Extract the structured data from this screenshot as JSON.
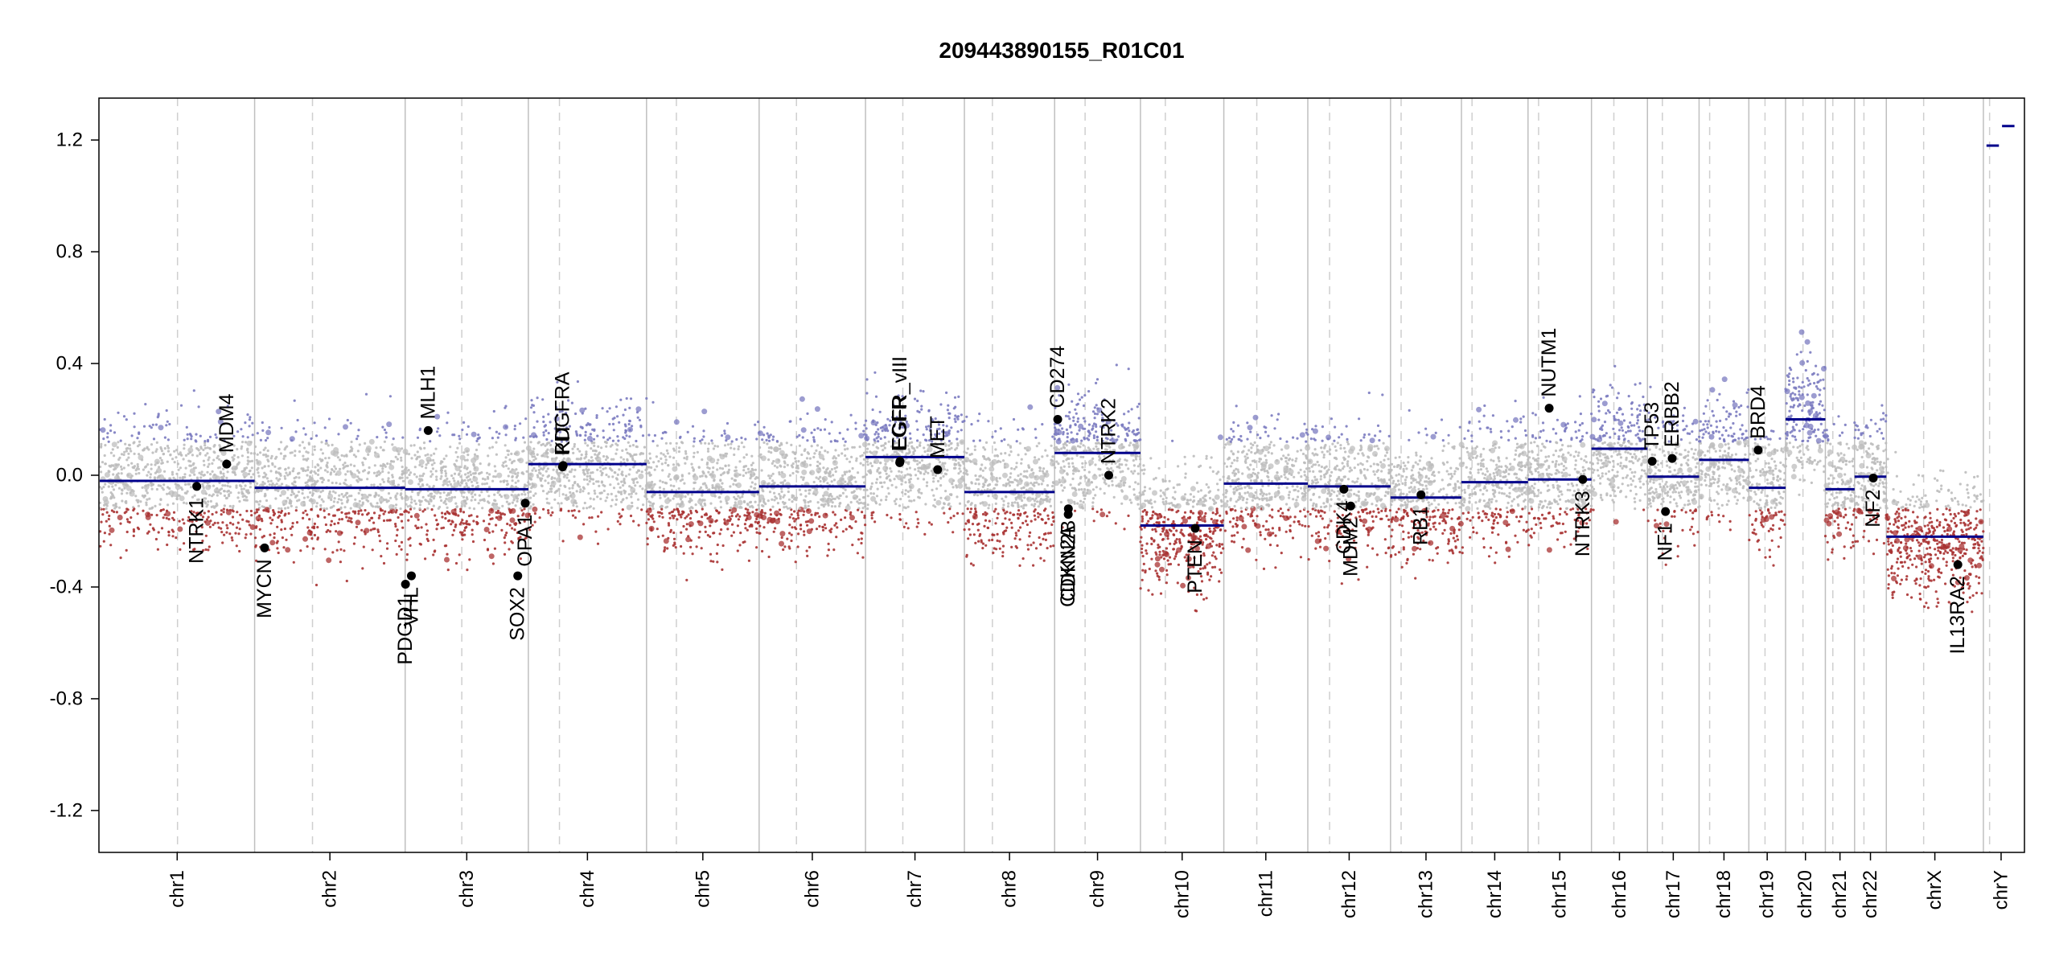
{
  "chart_data": {
    "type": "scatter",
    "title": "209443890155_R01C01",
    "xlabel": "",
    "ylabel": "",
    "ylim": [
      -1.35,
      1.35
    ],
    "y_ticks": [
      -1.2,
      -0.8,
      -0.4,
      0.0,
      0.4,
      0.8,
      1.2
    ],
    "y_tick_labels": [
      "-1.2",
      "-0.8",
      "-0.4",
      "0.0",
      "0.4",
      "0.8",
      "1.2"
    ],
    "grid": false,
    "colors": {
      "gain_points": "#7b7bc0",
      "neutral_points": "#bdbdbd",
      "loss_points": "#a83232",
      "segments": "#00008b",
      "chromosome_divider": "#bfbfbf",
      "centromere_line": "#cfcfcf",
      "gene_marker": "#000000"
    },
    "chromosomes": [
      {
        "name": "chr1",
        "length": 249,
        "centromere": 125,
        "segments": [
          {
            "start": 0,
            "end": 249,
            "value": -0.02
          }
        ]
      },
      {
        "name": "chr2",
        "length": 242,
        "centromere": 93,
        "segments": [
          {
            "start": 0,
            "end": 242,
            "value": -0.045
          }
        ]
      },
      {
        "name": "chr3",
        "length": 198,
        "centromere": 91,
        "segments": [
          {
            "start": 0,
            "end": 198,
            "value": -0.05
          }
        ]
      },
      {
        "name": "chr4",
        "length": 190,
        "centromere": 50,
        "segments": [
          {
            "start": 0,
            "end": 190,
            "value": 0.04
          }
        ]
      },
      {
        "name": "chr5",
        "length": 181,
        "centromere": 48,
        "segments": [
          {
            "start": 0,
            "end": 181,
            "value": -0.06
          }
        ]
      },
      {
        "name": "chr6",
        "length": 171,
        "centromere": 60,
        "segments": [
          {
            "start": 0,
            "end": 171,
            "value": -0.04
          }
        ]
      },
      {
        "name": "chr7",
        "length": 159,
        "centromere": 60,
        "segments": [
          {
            "start": 0,
            "end": 159,
            "value": 0.065
          }
        ]
      },
      {
        "name": "chr8",
        "length": 145,
        "centromere": 45,
        "segments": [
          {
            "start": 0,
            "end": 145,
            "value": -0.06
          }
        ]
      },
      {
        "name": "chr9",
        "length": 138,
        "centromere": 49,
        "segments": [
          {
            "start": 0,
            "end": 138,
            "value": 0.08
          }
        ]
      },
      {
        "name": "chr10",
        "length": 134,
        "centromere": 40,
        "segments": [
          {
            "start": 0,
            "end": 134,
            "value": -0.18
          }
        ]
      },
      {
        "name": "chr11",
        "length": 135,
        "centromere": 53,
        "segments": [
          {
            "start": 0,
            "end": 135,
            "value": -0.03
          }
        ]
      },
      {
        "name": "chr12",
        "length": 133,
        "centromere": 35,
        "segments": [
          {
            "start": 0,
            "end": 133,
            "value": -0.04
          }
        ]
      },
      {
        "name": "chr13",
        "length": 114,
        "centromere": 17,
        "segments": [
          {
            "start": 0,
            "end": 114,
            "value": -0.08
          }
        ]
      },
      {
        "name": "chr14",
        "length": 107,
        "centromere": 17,
        "segments": [
          {
            "start": 0,
            "end": 107,
            "value": -0.025
          }
        ]
      },
      {
        "name": "chr15",
        "length": 102,
        "centromere": 17,
        "segments": [
          {
            "start": 0,
            "end": 102,
            "value": -0.015
          }
        ]
      },
      {
        "name": "chr16",
        "length": 90,
        "centromere": 36,
        "segments": [
          {
            "start": 0,
            "end": 90,
            "value": 0.095
          }
        ]
      },
      {
        "name": "chr17",
        "length": 83,
        "centromere": 24,
        "segments": [
          {
            "start": 0,
            "end": 83,
            "value": -0.005
          }
        ]
      },
      {
        "name": "chr18",
        "length": 80,
        "centromere": 17,
        "segments": [
          {
            "start": 0,
            "end": 80,
            "value": 0.055
          }
        ]
      },
      {
        "name": "chr19",
        "length": 59,
        "centromere": 26,
        "segments": [
          {
            "start": 0,
            "end": 59,
            "value": -0.045
          }
        ]
      },
      {
        "name": "chr20",
        "length": 64,
        "centromere": 28,
        "segments": [
          {
            "start": 0,
            "end": 64,
            "value": 0.2
          }
        ]
      },
      {
        "name": "chr21",
        "length": 47,
        "centromere": 12,
        "segments": [
          {
            "start": 0,
            "end": 47,
            "value": -0.05
          }
        ]
      },
      {
        "name": "chr22",
        "length": 51,
        "centromere": 15,
        "segments": [
          {
            "start": 0,
            "end": 51,
            "value": -0.005
          }
        ]
      },
      {
        "name": "chrX",
        "length": 156,
        "centromere": 60,
        "segments": [
          {
            "start": 0,
            "end": 156,
            "value": -0.22
          }
        ]
      },
      {
        "name": "chrY",
        "length": 57,
        "centromere": 10,
        "segments": [
          {
            "start": 5,
            "end": 25,
            "value": 1.18
          },
          {
            "start": 30,
            "end": 50,
            "value": 1.25
          }
        ]
      }
    ],
    "genes": [
      {
        "name": "NTRK1",
        "chr": "chr1",
        "pos": 156,
        "value": -0.04,
        "label_side": "below"
      },
      {
        "name": "MDM4",
        "chr": "chr1",
        "pos": 204,
        "value": 0.04,
        "label_side": "above"
      },
      {
        "name": "MYCN",
        "chr": "chr2",
        "pos": 16,
        "value": -0.26,
        "label_side": "below"
      },
      {
        "name": "PDGD1",
        "chr": "chr3",
        "pos": 0.5,
        "value": -0.39,
        "label_side": "below"
      },
      {
        "name": "VHL",
        "chr": "chr3",
        "pos": 10,
        "value": -0.36,
        "label_side": "below"
      },
      {
        "name": "MLH1",
        "chr": "chr3",
        "pos": 37,
        "value": 0.16,
        "label_side": "above"
      },
      {
        "name": "SOX2",
        "chr": "chr3",
        "pos": 181,
        "value": -0.36,
        "label_side": "below"
      },
      {
        "name": "OPA1",
        "chr": "chr3",
        "pos": 193,
        "value": -0.1,
        "label_side": "below"
      },
      {
        "name": "PDGFRA",
        "chr": "chr4",
        "pos": 55,
        "value": 0.03,
        "label_side": "above"
      },
      {
        "name": "KIT",
        "chr": "chr4",
        "pos": 56,
        "value": 0.035,
        "label_side": "above"
      },
      {
        "name": "EGFR",
        "chr": "chr7",
        "pos": 55,
        "value": 0.045,
        "label_side": "above"
      },
      {
        "name": "EGFR_vIII",
        "chr": "chr7",
        "pos": 55.5,
        "value": 0.05,
        "label_side": "above"
      },
      {
        "name": "MET",
        "chr": "chr7",
        "pos": 116,
        "value": 0.02,
        "label_side": "above"
      },
      {
        "name": "CD274",
        "chr": "chr9",
        "pos": 5,
        "value": 0.2,
        "label_side": "above"
      },
      {
        "name": "CDKN2A",
        "chr": "chr9",
        "pos": 21.9,
        "value": -0.14,
        "label_side": "below"
      },
      {
        "name": "CDKN2B",
        "chr": "chr9",
        "pos": 22.1,
        "value": -0.12,
        "label_side": "below"
      },
      {
        "name": "NTRK2",
        "chr": "chr9",
        "pos": 87,
        "value": 0.0,
        "label_side": "above"
      },
      {
        "name": "PTEN",
        "chr": "chr10",
        "pos": 88,
        "value": -0.19,
        "label_side": "below"
      },
      {
        "name": "CDK4",
        "chr": "chr12",
        "pos": 58,
        "value": -0.05,
        "label_side": "below"
      },
      {
        "name": "MDM2",
        "chr": "chr12",
        "pos": 69,
        "value": -0.11,
        "label_side": "below"
      },
      {
        "name": "RB1",
        "chr": "chr13",
        "pos": 49,
        "value": -0.07,
        "label_side": "below"
      },
      {
        "name": "NUTM1",
        "chr": "chr15",
        "pos": 34,
        "value": 0.24,
        "label_side": "above"
      },
      {
        "name": "NTRK3",
        "chr": "chr15",
        "pos": 88,
        "value": -0.015,
        "label_side": "below"
      },
      {
        "name": "TP53",
        "chr": "chr17",
        "pos": 7.6,
        "value": 0.05,
        "label_side": "above"
      },
      {
        "name": "NF1",
        "chr": "chr17",
        "pos": 29,
        "value": -0.13,
        "label_side": "below"
      },
      {
        "name": "ERBB2",
        "chr": "chr17",
        "pos": 39.7,
        "value": 0.06,
        "label_side": "above"
      },
      {
        "name": "BRD4",
        "chr": "chr19",
        "pos": 15,
        "value": 0.09,
        "label_side": "above"
      },
      {
        "name": "NF2",
        "chr": "chr22",
        "pos": 30,
        "value": -0.01,
        "label_side": "below"
      },
      {
        "name": "IL13RA2",
        "chr": "chrX",
        "pos": 115,
        "value": -0.32,
        "label_side": "below"
      }
    ]
  }
}
